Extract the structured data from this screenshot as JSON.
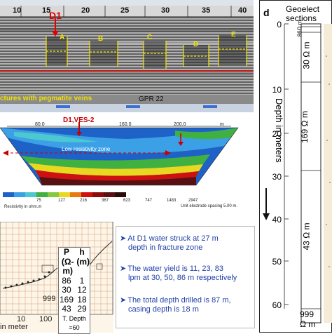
{
  "gpr": {
    "scale_ticks": [
      "10",
      "15",
      "20",
      "25",
      "30",
      "35",
      "40"
    ],
    "marker": "D1",
    "anomaly_labels": [
      "A",
      "B",
      "C",
      "D",
      "E"
    ],
    "title": "GPR 22",
    "caption": "ctures with pegmatite veins",
    "colors": {
      "background": "#8a8a8a",
      "marker": "#e30000",
      "annotation": "#f2e400"
    }
  },
  "resistivity": {
    "x_ticks": [
      "80.0",
      "160.0",
      "200.0",
      "m"
    ],
    "marker": "D1,VES-2",
    "zone_label": "Low resistivity zone",
    "legend_values": [
      "75",
      "127",
      "216",
      "367",
      "623",
      "747",
      "1483",
      "2947"
    ],
    "legend_colors": [
      "#1e62c8",
      "#3ca0e6",
      "#4cc8d0",
      "#40b040",
      "#86c840",
      "#e8d820",
      "#e87a10",
      "#d01010",
      "#8c0c0c",
      "#5a1010",
      "#2a0a0a"
    ],
    "legend_unit": "Resistivity in ohm.m",
    "electrode_spacing": "Unit electrode spacing 5.00 m."
  },
  "ves": {
    "table_headers": [
      "P",
      "h"
    ],
    "table_units": [
      "(Ω-m)",
      "(m)"
    ],
    "table_rows": [
      [
        "86",
        "1"
      ],
      [
        "30",
        "12"
      ],
      [
        "169",
        "18"
      ],
      [
        "43",
        "29"
      ]
    ],
    "total_depth": "T. Depth =60",
    "side_value": "999",
    "x_ticks": [
      "10",
      "100"
    ],
    "x_label": "in meter"
  },
  "bullets": [
    [
      "At D1 water struck at 27 m",
      "depth in fracture zone"
    ],
    [
      "The water yield is 11,  23, 83",
      "lpm at 30, 50, 86 m respectively"
    ],
    [
      "The total depth drilled is 87 m,",
      "casing depth is 18 m"
    ]
  ],
  "geoelectric": {
    "panel_letter": "d",
    "title_line1": "Geoelect",
    "title_line2": "sections",
    "depth_ticks": [
      "0",
      "10",
      "20",
      "30",
      "40",
      "50",
      "60"
    ],
    "y_label": "Depth in meters",
    "layers": [
      "86Ω m",
      "30 Ω m",
      "169 Ω m",
      "43 Ω m"
    ],
    "bottom_value": "999",
    "bottom_unit": "Ω m"
  }
}
